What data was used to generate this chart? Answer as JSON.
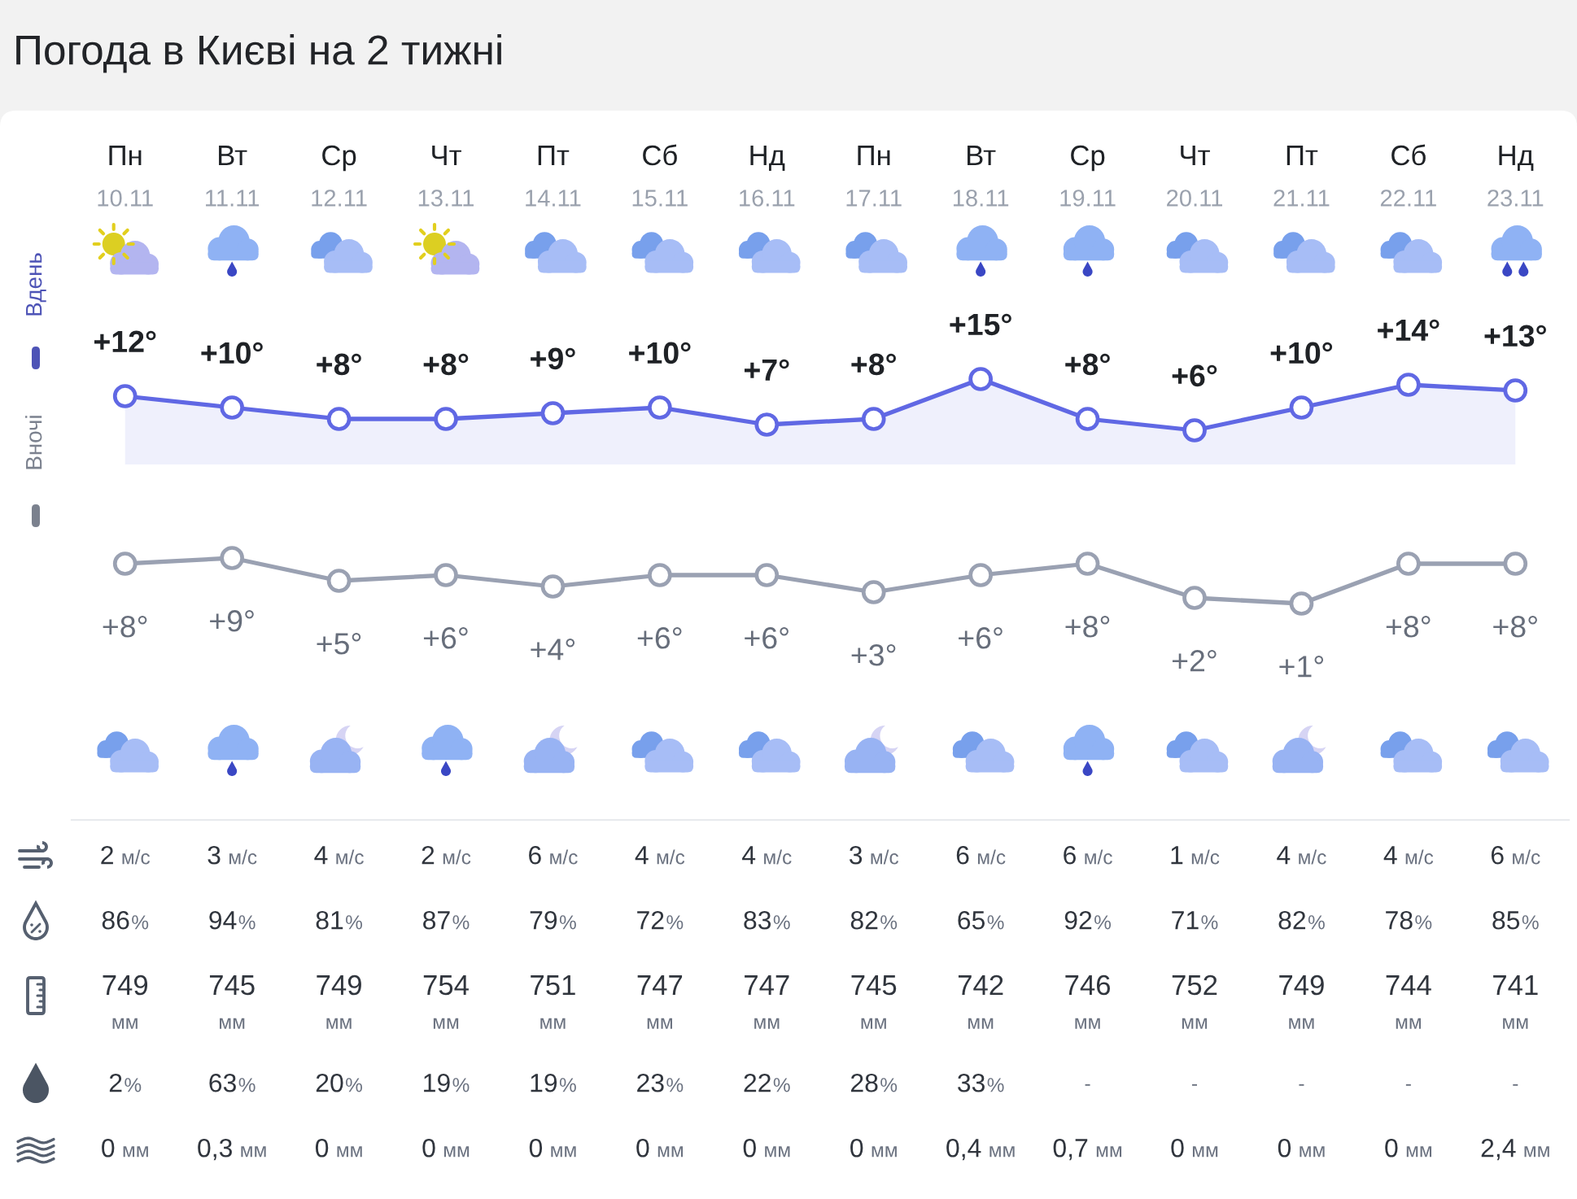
{
  "chart_data": [
    {
      "type": "line",
      "title": "Погода в Києві на 2 тижні",
      "categories": [
        "Пн\n10.11",
        "Вт\n11.11",
        "Ср\n12.11",
        "Чт\n13.11",
        "Пт\n14.11",
        "Сб\n15.11",
        "Нд\n16.11",
        "Пн\n17.11",
        "Вт\n18.11",
        "Ср\n19.11",
        "Чт\n20.11",
        "Пт\n21.11",
        "Сб\n22.11",
        "Нд\n23.11"
      ],
      "series": [
        {
          "name": "Вдень",
          "type": "area",
          "color": "#6068e4",
          "values": [
            12,
            10,
            8,
            8,
            9,
            10,
            7,
            8,
            15,
            8,
            6,
            10,
            14,
            13
          ],
          "value_labels": [
            "+12°",
            "+10°",
            "+8°",
            "+8°",
            "+9°",
            "+10°",
            "+7°",
            "+8°",
            "+15°",
            "+8°",
            "+6°",
            "+10°",
            "+14°",
            "+13°"
          ]
        }
      ],
      "marker": "circle",
      "line_style": "solid",
      "legend": "left",
      "tick_labels": "x"
    },
    {
      "type": "line",
      "categories": [
        null,
        null,
        null,
        null,
        null,
        null,
        null,
        null,
        null,
        null,
        null,
        null,
        null,
        null
      ],
      "series": [
        {
          "name": "Вночі",
          "color": "#9aa1b2",
          "values": [
            8,
            9,
            5,
            6,
            4,
            6,
            6,
            3,
            6,
            8,
            2,
            1,
            8,
            8
          ],
          "value_labels": [
            "+8°",
            "+9°",
            "+5°",
            "+6°",
            "+4°",
            "+6°",
            "+6°",
            "+3°",
            "+6°",
            "+8°",
            "+2°",
            "+1°",
            "+8°",
            "+8°"
          ]
        }
      ],
      "marker": "circle",
      "line_style": "solid",
      "legend": "left",
      "tick_labels": false
    },
    {
      "type": "other",
      "categories": [
        null,
        null,
        null,
        null,
        null,
        null,
        null,
        null,
        null,
        null,
        null,
        null,
        null,
        null
      ],
      "annotations": [
        "2 м/с",
        "3 м/с",
        "4 м/с",
        "2 м/с",
        "6 м/с",
        "4 м/с",
        "4 м/с",
        "3 м/с",
        "6 м/с",
        "6 м/с",
        "1 м/с",
        "4 м/с",
        "4 м/с",
        "6 м/с",
        "86%",
        "94%",
        "81%",
        "87%",
        "79%",
        "72%",
        "83%",
        "82%",
        "65%",
        "92%",
        "71%",
        "82%",
        "78%",
        "85%",
        "749\nмм",
        "745\nмм",
        "749\nмм",
        "754\nмм",
        "751\nмм",
        "747\nмм",
        "747\nмм",
        "745\nмм",
        "742\nмм",
        "746\nмм",
        "752\nмм",
        "749\nмм",
        "744\nмм",
        "741\nмм",
        "2%",
        "63%",
        "20%",
        "19%",
        "19%",
        "23%",
        "22%",
        "28%",
        "33%",
        "-",
        "-",
        "-",
        "-",
        "-",
        "0 мм",
        "0,3 мм",
        "0 мм",
        "0 мм",
        "0 мм",
        "0 мм",
        "0 мм",
        "0 мм",
        "0,4 мм",
        "0,7 мм",
        "0 мм",
        "0 мм",
        "0 мм",
        "2,4 мм"
      ]
    }
  ]
}
